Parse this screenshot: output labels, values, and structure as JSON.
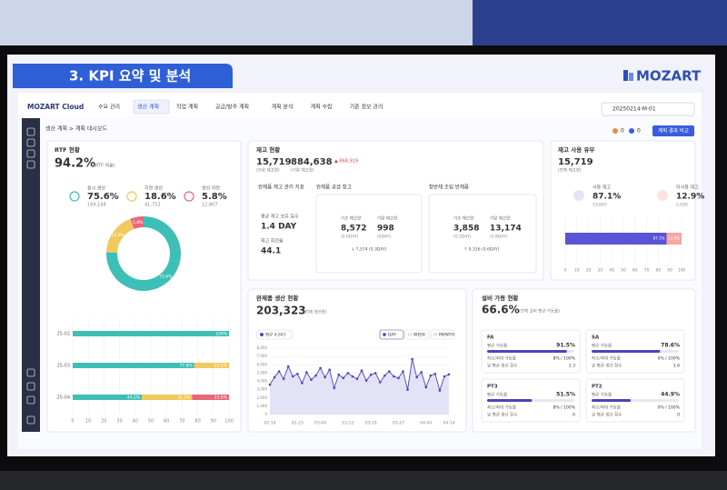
{
  "header": {
    "title": "3. KPI 요약 및 분석",
    "brand": "MOZART"
  },
  "app": {
    "logo": "MOZART Cloud",
    "menu": [
      "수요 관리",
      "생산 계획",
      "작업 계획",
      "공급/발주 계획",
      "계획 분석",
      "계획 수립",
      "기준 정보 관리"
    ],
    "active_menu": 1,
    "plan_id": "20250214-M-01",
    "alerts": [
      0,
      0
    ],
    "compare_button": "계획 결과 비교",
    "breadcrumb": "생산 계획 > 계획 대시보드"
  },
  "rtf": {
    "title": "RTF 현황",
    "value": "94.2%",
    "caption": "(RTF 비율)",
    "items": [
      {
        "label": "정시 생산",
        "value": "75.6%",
        "count": "169,144"
      },
      {
        "label": "지연 생산",
        "value": "18.6%",
        "count": "41,753"
      },
      {
        "label": "생산 지연",
        "value": "5.8%",
        "count": "12,807"
      }
    ],
    "donut": {
      "type": "pie",
      "values": [
        75.6,
        18.6,
        5.8
      ],
      "value_labels": [
        "75.6%",
        "18.6%",
        "5.8%"
      ],
      "colors": [
        "#3ebfb6",
        "#f1c95c",
        "#e8677a"
      ]
    },
    "stack": {
      "type": "bar",
      "orientation": "horizontal",
      "categories": [
        "25-02",
        "25-03",
        "25-04"
      ],
      "series": [
        {
          "color": "#3ebfb6",
          "values": [
            100,
            77.8,
            44.2
          ],
          "value_labels": [
            "100%",
            "77.8%",
            "44.2%"
          ]
        },
        {
          "color": "#f1c95c",
          "values": [
            0,
            22.2,
            32.2
          ],
          "value_labels": [
            null,
            "22.2%",
            "32.2%"
          ]
        },
        {
          "color": "#e8677a",
          "values": [
            0,
            0,
            23.6
          ],
          "value_labels": [
            null,
            null,
            "23.6%"
          ]
        }
      ],
      "xlim": [
        0,
        100
      ],
      "xticks": [
        0,
        10,
        20,
        30,
        40,
        50,
        60,
        70,
        80,
        90,
        100
      ]
    }
  },
  "inventory": {
    "title": "재고 현황",
    "available": "15,719",
    "available_caption": "(가용 재고량)",
    "total": "884,638",
    "total_caption": "(기말 재고량)",
    "delta": "▲ 868,919",
    "kpi": {
      "title": "완제품 재고 관리 지표",
      "days_label": "평균 재고 보유 일수",
      "days": "1.4 DAY",
      "turnover_label": "재고 회전율",
      "turnover": "44.1"
    },
    "boxes": [
      {
        "title": "완제품 공급 창고",
        "begin_label": "기초 재고량",
        "begin": "8,572",
        "begin_days": "(0.0DAY)",
        "end_label": "기말 재고량",
        "end": "998",
        "end_days": "(0DAY)",
        "change": "↓ 7,574 (0.3DAY)"
      },
      {
        "title": "창반재 조립 반제품",
        "begin_label": "기초 재고량",
        "begin": "3,858",
        "begin_days": "(0.2DAY)",
        "end_label": "기말 재고량",
        "end": "13,174",
        "end_days": "(0.8DAY)",
        "change": "↑ 9,316 (0.6DAY)"
      }
    ]
  },
  "usage": {
    "title": "재고 사용 유무",
    "total": "15,719",
    "caption": "(전체 재고량)",
    "items": [
      {
        "label": "사용 재고",
        "value": "87.1%",
        "count": "13,693"
      },
      {
        "label": "미사용 재고",
        "value": "12.9%",
        "count": "2,026"
      }
    ],
    "bar": {
      "type": "bar",
      "orientation": "horizontal",
      "series": [
        {
          "color": "#5b54d6",
          "values": [
            87.1
          ],
          "value_labels": [
            "87.1%"
          ]
        },
        {
          "color": "#f4a8a0",
          "values": [
            12.9
          ],
          "value_labels": [
            "12.9%"
          ]
        }
      ],
      "xlim": [
        0,
        100
      ],
      "xticks": [
        0,
        10,
        20,
        30,
        40,
        50,
        60,
        70,
        80,
        90,
        100
      ]
    }
  },
  "production": {
    "title": "완제품 생산 현황",
    "total": "203,323",
    "caption": "(전체 생산량)",
    "legend": "평균 4,843",
    "buttons": [
      "DAY",
      "WEEK",
      "MONTH"
    ],
    "active_button": 0,
    "chart": {
      "type": "line",
      "color": "#4b45b8",
      "categories": [
        "02-14",
        null,
        null,
        null,
        null,
        null,
        "02-23",
        null,
        null,
        null,
        null,
        "03-04",
        null,
        null,
        null,
        null,
        null,
        "03-12",
        null,
        null,
        null,
        null,
        "03-19",
        null,
        null,
        null,
        null,
        null,
        "03-27",
        null,
        null,
        null,
        null,
        null,
        "04-04",
        null,
        null,
        null,
        null,
        "04-14"
      ],
      "values": [
        3600,
        4500,
        5200,
        4300,
        5800,
        4600,
        4900,
        3800,
        5100,
        4200,
        4700,
        5600,
        4500,
        5400,
        3200,
        4800,
        4400,
        5000,
        4600,
        4300,
        5300,
        4100,
        4800,
        5000,
        3900,
        4700,
        5200,
        4600,
        4400,
        5200,
        3000,
        6700,
        4500,
        5100,
        3300,
        4700,
        4900,
        2900,
        4600,
        4843
      ],
      "ylim": [
        0,
        8000
      ],
      "yticks": [
        0,
        {
          "value": 1000,
          "label": "1,000"
        },
        {
          "value": 2000,
          "label": "2,000"
        },
        {
          "value": 3000,
          "label": "3,000"
        },
        {
          "value": 4000,
          "label": "4,000"
        },
        {
          "value": 5000,
          "label": "5,000"
        },
        {
          "value": 6000,
          "label": "6,000"
        },
        {
          "value": 7000,
          "label": "7,000"
        },
        {
          "value": 8000,
          "label": "8,000"
        }
      ],
      "grid": true
    }
  },
  "equipment": {
    "title": "설비 가동 현황",
    "value": "66.6%",
    "caption": "(전체 설비 평균 가동률)",
    "cards": [
      {
        "name": "FA",
        "rate_label": "평균 가동률",
        "rate": 91.5,
        "rate_text": "91.5%",
        "range_label": "최소/최대 가동률",
        "range": "8% / 100%",
        "count_label": "일 평균 생산 횟수",
        "count": "2.3"
      },
      {
        "name": "SA",
        "rate_label": "평균 가동률",
        "rate": 78.6,
        "rate_text": "78.6%",
        "range_label": "최소/최대 가동률",
        "range": "0% / 100%",
        "count_label": "일 평균 생산 횟수",
        "count": "1.6"
      },
      {
        "name": "PT3",
        "rate_label": "평균 가동률",
        "rate": 51.5,
        "rate_text": "51.5%",
        "range_label": "최소/최대 가동률",
        "range": "8% / 100%",
        "count_label": "일 평균 생산 횟수",
        "count": "0"
      },
      {
        "name": "PT2",
        "rate_label": "평균 가동률",
        "rate": 44.9,
        "rate_text": "44.9%",
        "range_label": "최소/최대 가동률",
        "range": "0% / 100%",
        "count_label": "일 평균 생산 횟수",
        "count": "0"
      }
    ],
    "bar_color": "#4b45b8",
    "bar_max": 100
  }
}
